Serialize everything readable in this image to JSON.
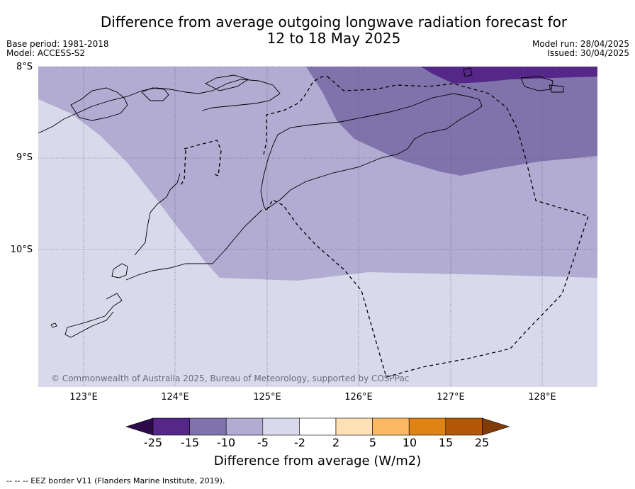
{
  "title_line1": "Difference from average outgoing longwave radiation forecast for",
  "title_line2": "12 to 18 May 2025",
  "base_period": "Base period: 1981-2018",
  "model": "Model: ACCESS-S2",
  "model_run": "Model run: 28/04/2025",
  "issued": "Issued: 30/04/2025",
  "lat_labels": [
    "8°S",
    "9°S",
    "10°S"
  ],
  "lon_labels": [
    "123°E",
    "124°E",
    "125°E",
    "126°E",
    "127°E",
    "128°E"
  ],
  "copyright": "© Commonwealth of Australia 2025, Bureau of Meteorology, supported by COSPPac",
  "colorbar": {
    "ticks": [
      "-25",
      "-15",
      "-10",
      "-5",
      "-2",
      "2",
      "5",
      "10",
      "15",
      "25"
    ],
    "colors": [
      "#2e0a4d",
      "#542788",
      "#8073ac",
      "#b2abd2",
      "#d8daeb",
      "#ffffff",
      "#fee0b6",
      "#fdb863",
      "#e08214",
      "#b35806",
      "#7f3b08"
    ],
    "title": "Difference from average (W/m2)"
  },
  "footer": "--  --  -- EEZ border V11 (Flanders Marine Institute, 2019).",
  "fill_colors": {
    "lightest": "#d8daeb",
    "light": "#b2abd2",
    "medium": "#8073ac",
    "dark": "#542788"
  }
}
